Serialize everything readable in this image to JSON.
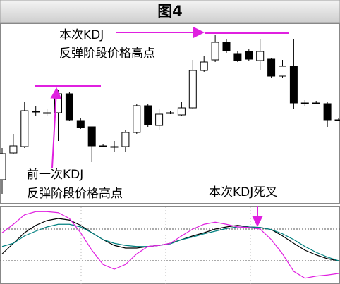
{
  "title": "图4",
  "chart_data": [
    {
      "type": "candlestick",
      "open": [
        35,
        73,
        82,
        132,
        130,
        130,
        157,
        119,
        110,
        83,
        82,
        82,
        102,
        140,
        112,
        130,
        127,
        137,
        190,
        205,
        230,
        214,
        217,
        204,
        206,
        182,
        196,
        144,
        144,
        143,
        120
      ],
      "high": [
        80,
        100,
        145,
        140,
        135,
        162,
        160,
        122,
        110,
        85,
        90,
        105,
        142,
        142,
        135,
        133,
        145,
        205,
        210,
        240,
        235,
        218,
        220,
        235,
        208,
        205,
        235,
        148,
        146,
        145,
        122
      ],
      "low": [
        15,
        72,
        80,
        125,
        125,
        90,
        118,
        107,
        60,
        81,
        75,
        75,
        100,
        110,
        105,
        128,
        125,
        135,
        188,
        202,
        215,
        202,
        204,
        190,
        180,
        180,
        135,
        140,
        142,
        110,
        118
      ],
      "close": [
        72,
        83,
        133,
        132,
        130,
        157,
        120,
        109,
        83,
        83,
        82,
        102,
        140,
        113,
        128,
        130,
        137,
        190,
        202,
        230,
        218,
        204,
        206,
        217,
        182,
        196,
        144,
        144,
        144,
        120,
        120
      ],
      "up_color": "#ffffff",
      "down_color": "#000000",
      "ylim": [
        0,
        260
      ],
      "annotations": [
        {
          "text": [
            "本次KDJ",
            "反弹阶段价格高点"
          ]
        },
        {
          "text": [
            "前一次KDJ",
            "反弹阶段价格高点"
          ]
        }
      ]
    },
    {
      "type": "line",
      "series": [
        {
          "color": "#000000",
          "values": [
            33,
            53,
            73,
            87,
            96,
            100,
            97,
            87,
            73,
            60,
            49,
            44,
            44,
            47,
            49,
            53,
            60,
            67,
            73,
            80,
            84,
            87,
            84,
            83,
            79,
            67,
            53,
            40,
            31,
            24,
            20
          ]
        },
        {
          "color": "#008080",
          "values": [
            47,
            53,
            67,
            76,
            84,
            89,
            89,
            84,
            73,
            60,
            53,
            49,
            47,
            47,
            49,
            52,
            60,
            65,
            71,
            76,
            81,
            84,
            84,
            83,
            79,
            71,
            60,
            47,
            36,
            27,
            20
          ]
        },
        {
          "color": "#e020e0",
          "values": [
            73,
            89,
            107,
            113,
            113,
            111,
            100,
            73,
            40,
            13,
            4,
            13,
            33,
            47,
            49,
            53,
            67,
            80,
            89,
            93,
            89,
            84,
            83,
            80,
            60,
            33,
            0,
            -13,
            -9,
            -7,
            -4
          ]
        }
      ],
      "ylim": [
        -20,
        120
      ],
      "levels": [
        20,
        80
      ],
      "annotations": [
        {
          "text": [
            "本次KDJ死叉"
          ]
        }
      ]
    }
  ]
}
